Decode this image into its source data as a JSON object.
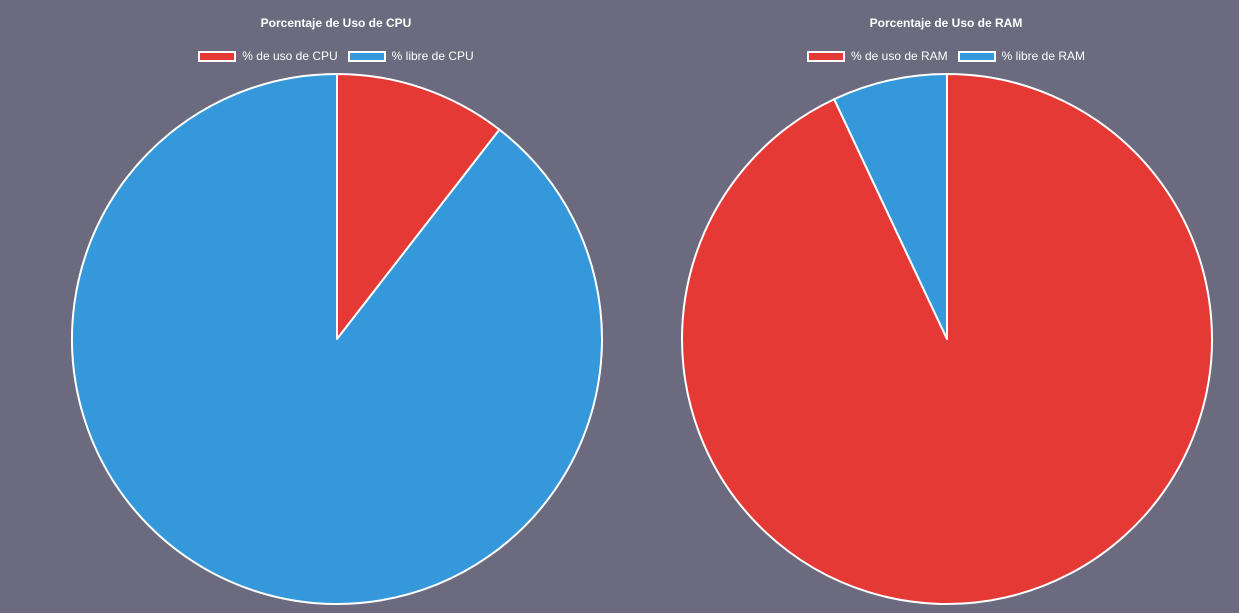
{
  "colors": {
    "background": "#6b6a7e",
    "used": "#e53935",
    "free": "#3498db",
    "border": "#ffffff"
  },
  "chart_data": [
    {
      "id": "cpu",
      "type": "pie",
      "title": "Porcentaje de Uso de CPU",
      "labels": [
        "% de uso de CPU",
        "% libre de CPU"
      ],
      "values": [
        10.5,
        89.5
      ],
      "colors": [
        "#e53935",
        "#3498db"
      ],
      "legend_position": "top"
    },
    {
      "id": "ram",
      "type": "pie",
      "title": "Porcentaje de Uso de RAM",
      "labels": [
        "% de uso de RAM",
        "% libre de RAM"
      ],
      "values": [
        93,
        7
      ],
      "colors": [
        "#e53935",
        "#3498db"
      ],
      "legend_position": "top"
    }
  ]
}
